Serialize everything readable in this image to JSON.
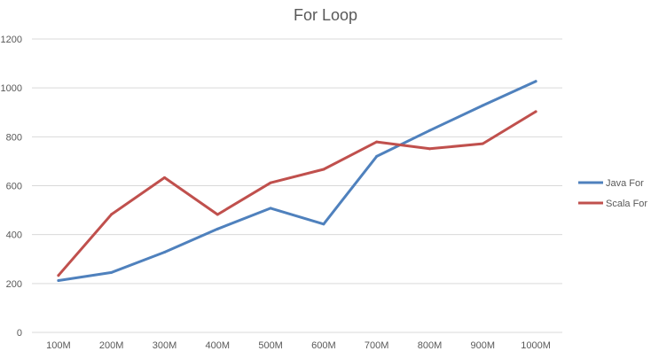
{
  "chart_data": {
    "type": "line",
    "title": "For Loop",
    "xlabel": "",
    "ylabel": "",
    "categories": [
      "100M",
      "200M",
      "300M",
      "400M",
      "500M",
      "600M",
      "700M",
      "800M",
      "900M",
      "1000M"
    ],
    "ylim": [
      0,
      1200
    ],
    "yticks": [
      0,
      200,
      400,
      600,
      800,
      1000,
      1200
    ],
    "grid": true,
    "legend_position": "right",
    "series": [
      {
        "name": "Java For",
        "color": "#4f81bd",
        "values": [
          212,
          245,
          328,
          423,
          508,
          443,
          720,
          826,
          928,
          1027
        ]
      },
      {
        "name": "Scala For",
        "color": "#c0504d",
        "values": [
          233,
          483,
          633,
          482,
          612,
          667,
          779,
          751,
          772,
          903
        ]
      }
    ]
  }
}
